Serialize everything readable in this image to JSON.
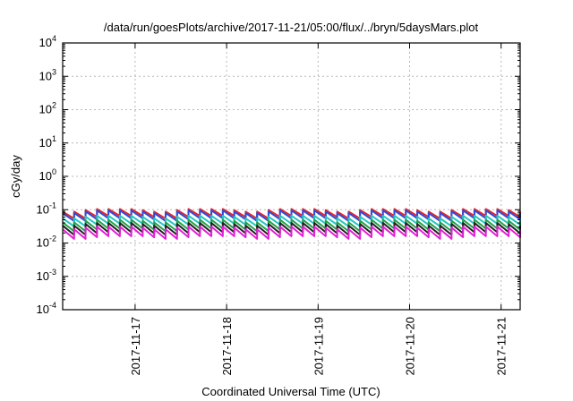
{
  "chart_data": {
    "type": "line",
    "title": "/data/run/goesPlots/archive/2017-11-21/05:00/flux/../bryn/5daysMars.plot",
    "xlabel": "Coordinated Universal Time (UTC)",
    "ylabel": "cGy/day",
    "yscale": "log",
    "ylim": [
      0.0001,
      10000
    ],
    "xlim": [
      "2017-11-16 05:00",
      "2017-11-21 05:00"
    ],
    "x_ticks": [
      "2017-11-17",
      "2017-11-18",
      "2017-11-19",
      "2017-11-20",
      "2017-11-21"
    ],
    "y_ticks": [
      {
        "base": "10",
        "exp": "4"
      },
      {
        "base": "10",
        "exp": "3"
      },
      {
        "base": "10",
        "exp": "2"
      },
      {
        "base": "10",
        "exp": "1"
      },
      {
        "base": "10",
        "exp": "0"
      },
      {
        "base": "10",
        "exp": "-1"
      },
      {
        "base": "10",
        "exp": "-2"
      },
      {
        "base": "10",
        "exp": "-3"
      },
      {
        "base": "10",
        "exp": "-4"
      }
    ],
    "grid": true,
    "legend": "none",
    "sawtooth_period_hours": 3,
    "series": [
      {
        "color": "#e8252a",
        "peak": 0.105,
        "trough": 0.065
      },
      {
        "color": "#2f4bd8",
        "peak": 0.095,
        "trough": 0.055
      },
      {
        "color": "#23c7c2",
        "peak": 0.066,
        "trough": 0.038
      },
      {
        "color": "#24a04a",
        "peak": 0.05,
        "trough": 0.027
      },
      {
        "color": "#222222",
        "peak": 0.04,
        "trough": 0.021
      },
      {
        "color": "#e020d4",
        "peak": 0.031,
        "trough": 0.016
      }
    ]
  }
}
